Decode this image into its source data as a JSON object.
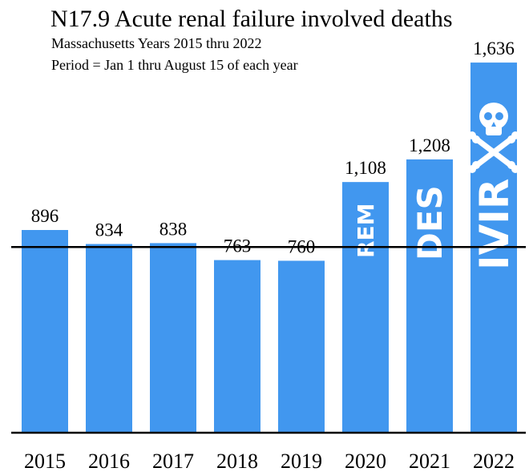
{
  "title": "N17.9 Acute renal failure involved deaths",
  "subtitle_1": "Massachusetts Years 2015 thru 2022",
  "subtitle_2": "Period = Jan 1 thru August 15 of each year",
  "colors": {
    "bar": "#4197ef",
    "text": "#000000",
    "icon": "#ffffff"
  },
  "chart_data": {
    "type": "bar",
    "title": "N17.9 Acute renal failure involved deaths",
    "categories": [
      "2015",
      "2016",
      "2017",
      "2018",
      "2019",
      "2020",
      "2021",
      "2022"
    ],
    "values": [
      896,
      834,
      838,
      763,
      760,
      1108,
      1208,
      1636
    ],
    "value_labels": [
      "896",
      "834",
      "838",
      "763",
      "760",
      "1,108",
      "1,208",
      "1,636"
    ],
    "bar_words": [
      "",
      "",
      "",
      "",
      "",
      "REM",
      "DES",
      "IVIR"
    ],
    "bar_icons": [
      "",
      "",
      "",
      "",
      "",
      "",
      "",
      "skull-and-crossbones-icon"
    ],
    "reference_line": 821,
    "ylim": [
      0,
      1700
    ],
    "grid": false,
    "legend": "none"
  }
}
